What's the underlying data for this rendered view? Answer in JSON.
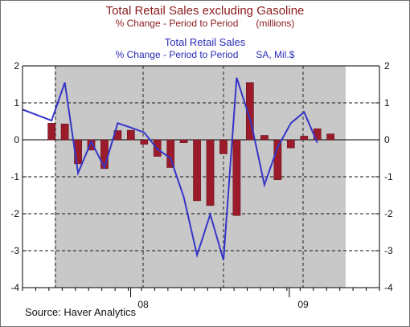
{
  "titles": {
    "line1": "Total Retail Sales excluding Gasoline",
    "line2_left": "% Change - Period to Period",
    "line2_right": "(millions)",
    "line3": "Total Retail Sales",
    "line4_left": "% Change - Period to Period",
    "line4_right": "SA, Mil.$"
  },
  "source": "Source: Haver Analytics",
  "colors": {
    "bars": "#9b1b2a",
    "line": "#3535c8",
    "recession_shade": "#c8c8c8",
    "title_red": "#8b1a1a",
    "title_blue": "#2a2ab8"
  },
  "chart_data": {
    "type": "bar",
    "x_tick_labels": [
      "08",
      "09"
    ],
    "ylim": [
      -4,
      2
    ],
    "y_ticks": [
      2,
      1,
      0,
      -1,
      -2,
      -3,
      -4
    ],
    "recession_shading": {
      "from_period": 3,
      "to_period": 26
    },
    "grid": "dashed",
    "series": [
      {
        "name": "Total Retail Sales excluding Gasoline",
        "kind": "bar",
        "values": [
          0.45,
          0.43,
          -0.65,
          -0.28,
          -0.78,
          0.25,
          0.26,
          -0.12,
          -0.45,
          -0.75,
          -0.08,
          -1.65,
          -1.78,
          -0.38,
          -2.05,
          1.55,
          0.12,
          -1.08,
          -0.22,
          0.1,
          0.3,
          0.16
        ]
      },
      {
        "name": "Total Retail Sales",
        "kind": "line",
        "values": [
          0.82,
          0.52,
          1.55,
          -0.9,
          -0.05,
          -0.75,
          0.45,
          0.33,
          0.2,
          -0.25,
          -0.5,
          -1.55,
          -3.12,
          -2.02,
          -3.25,
          1.68,
          0.45,
          -1.22,
          -0.2,
          0.45,
          0.75,
          -0.08
        ]
      }
    ]
  }
}
